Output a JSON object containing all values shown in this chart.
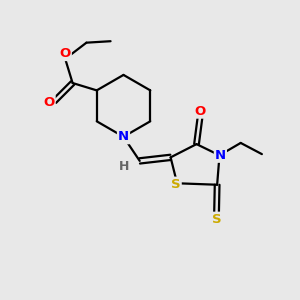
{
  "bg_color": "#e8e8e8",
  "bond_color": "#000000",
  "atom_colors": {
    "O": "#ff0000",
    "N": "#0000ff",
    "S": "#ccaa00",
    "H": "#666666",
    "C": "#000000"
  },
  "figsize": [
    3.0,
    3.0
  ],
  "dpi": 100,
  "lw": 1.6,
  "fontsize": 9.5
}
